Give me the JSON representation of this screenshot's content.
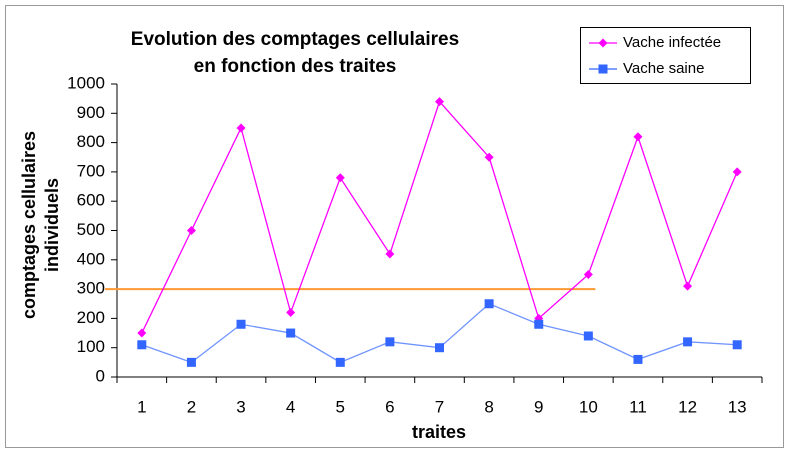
{
  "chart_data": {
    "type": "line",
    "title": [
      "Evolution des comptages cellulaires",
      "en fonction des traites"
    ],
    "xlabel": "traites",
    "ylabel": [
      "comptages cellulaires",
      "individuels"
    ],
    "categories": [
      "1",
      "2",
      "3",
      "4",
      "5",
      "6",
      "7",
      "8",
      "9",
      "10",
      "11",
      "12",
      "13"
    ],
    "series": [
      {
        "name": "Vache infectée",
        "color": "#ff00ff",
        "marker": "diamond",
        "values": [
          150,
          500,
          850,
          220,
          680,
          420,
          940,
          750,
          200,
          350,
          820,
          310,
          700
        ]
      },
      {
        "name": "Vache saine",
        "color": "#3366ff",
        "marker": "square",
        "values": [
          110,
          50,
          180,
          150,
          50,
          120,
          100,
          250,
          180,
          140,
          60,
          120,
          110
        ]
      }
    ],
    "threshold": {
      "value": 300,
      "color": "#ff9933"
    },
    "ylim": [
      0,
      1000
    ],
    "yticks": [
      0,
      100,
      200,
      300,
      400,
      500,
      600,
      700,
      800,
      900,
      1000
    ],
    "grid": false,
    "legend": "top-right"
  }
}
